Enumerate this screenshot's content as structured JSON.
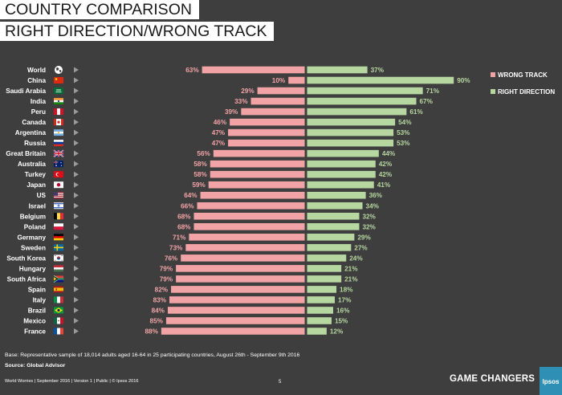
{
  "title_line1": "COUNTRY COMPARISON",
  "title_line2": "RIGHT DIRECTION/WRONG TRACK",
  "chart_data": {
    "type": "bar",
    "orientation": "horizontal-diverging",
    "categories": [
      "World",
      "China",
      "Saudi Arabia",
      "India",
      "Peru",
      "Canada",
      "Argentina",
      "Russia",
      "Great Britain",
      "Australia",
      "Turkey",
      "Japan",
      "US",
      "Israel",
      "Belgium",
      "Poland",
      "Germany",
      "Sweden",
      "South Korea",
      "Hungary",
      "South Africa",
      "Spain",
      "Italy",
      "Brazil",
      "Mexico",
      "France"
    ],
    "series": [
      {
        "name": "WRONG  TRACK",
        "color": "#f2a3a6",
        "values": [
          63,
          10,
          29,
          33,
          39,
          46,
          47,
          47,
          56,
          58,
          58,
          59,
          64,
          66,
          68,
          68,
          71,
          73,
          76,
          79,
          79,
          82,
          83,
          84,
          85,
          88
        ]
      },
      {
        "name": "RIGHT DIRECTION",
        "color": "#b6d7a0",
        "values": [
          37,
          90,
          71,
          67,
          61,
          54,
          53,
          53,
          44,
          42,
          42,
          41,
          36,
          34,
          32,
          32,
          29,
          27,
          24,
          21,
          21,
          18,
          17,
          16,
          15,
          12
        ]
      }
    ],
    "label_colors": {
      "wrong": "#f2a3a6",
      "right": "#b6d7a0"
    },
    "legend_position": "top-right",
    "value_suffix": "%"
  },
  "flag_icons": [
    "globe-icon",
    "flag-china-icon",
    "flag-saudi-arabia-icon",
    "flag-india-icon",
    "flag-peru-icon",
    "flag-canada-icon",
    "flag-argentina-icon",
    "flag-russia-icon",
    "flag-great-britain-icon",
    "flag-australia-icon",
    "flag-turkey-icon",
    "flag-japan-icon",
    "flag-us-icon",
    "flag-israel-icon",
    "flag-belgium-icon",
    "flag-poland-icon",
    "flag-germany-icon",
    "flag-sweden-icon",
    "flag-south-korea-icon",
    "flag-hungary-icon",
    "flag-south-africa-icon",
    "flag-spain-icon",
    "flag-italy-icon",
    "flag-brazil-icon",
    "flag-mexico-icon",
    "flag-france-icon"
  ],
  "footer": {
    "base": "Base: Representative sample of 18,014 adults aged 16-64 in 25 participating countries, August 26th - September 9th 2016",
    "source": "Source: Global Advisor",
    "left": "World Worries | September 2016 | Version 1 | Public | © Ipsos 2016",
    "page": "5",
    "brand": "GAME CHANGERS",
    "logo_text": "Ipsos"
  },
  "colors": {
    "background": "#3e3e3e",
    "title_box": "#ffffff",
    "logo": "#2f8fb4"
  }
}
